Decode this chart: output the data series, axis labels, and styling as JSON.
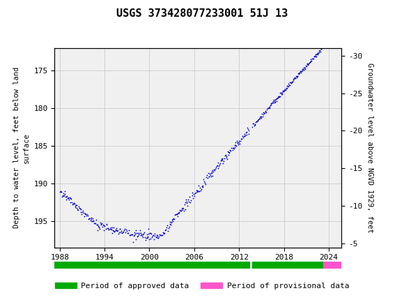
{
  "title": "USGS 373428077233001 51J 13",
  "ylabel_left": "Depth to water level, feet below land\nsurface",
  "ylabel_right": "Groundwater level above NGVD 1929, feet",
  "ylim_left": [
    172.0,
    198.5
  ],
  "ylim_right": [
    -4.5,
    -31.0
  ],
  "xlim": [
    1987.3,
    2025.7
  ],
  "yticks_left": [
    175,
    180,
    185,
    190,
    195
  ],
  "yticks_right": [
    -5,
    -10,
    -15,
    -20,
    -25,
    -30
  ],
  "xticks": [
    1988,
    1994,
    2000,
    2006,
    2012,
    2018,
    2024
  ],
  "header_color": "#1b6b3a",
  "data_color": "#0000cc",
  "bg_color": "#ffffff",
  "plot_bg_color": "#f0f0f0",
  "grid_color": "#cccccc",
  "approved_color": "#00aa00",
  "provisional_color": "#ff55cc",
  "approved_bar1_xmin": 1987.3,
  "approved_bar1_xmax": 2013.4,
  "approved_bar2_xmin": 2013.8,
  "approved_bar2_xmax": 2023.3,
  "provisional_bar_xmin": 2023.3,
  "provisional_bar_xmax": 2025.7,
  "legend_approved": "Period of approved data",
  "legend_provisional": "Period of provisional data"
}
